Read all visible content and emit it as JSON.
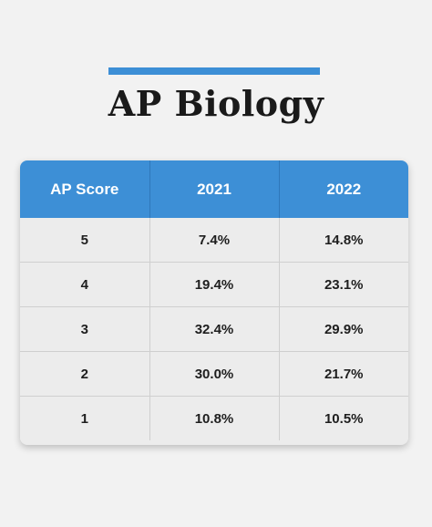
{
  "title": "AP Biology",
  "colors": {
    "accent": "#3d8fd6",
    "header_text": "#ffffff",
    "cell_background": "#ececec",
    "page_background": "#f2f2f2"
  },
  "chart_data": {
    "type": "table",
    "title": "AP Biology",
    "columns": [
      "AP Score",
      "2021",
      "2022"
    ],
    "rows": [
      [
        "5",
        "7.4%",
        "14.8%"
      ],
      [
        "4",
        "19.4%",
        "23.1%"
      ],
      [
        "3",
        "32.4%",
        "29.9%"
      ],
      [
        "2",
        "30.0%",
        "21.7%"
      ],
      [
        "1",
        "10.8%",
        "10.5%"
      ]
    ]
  }
}
